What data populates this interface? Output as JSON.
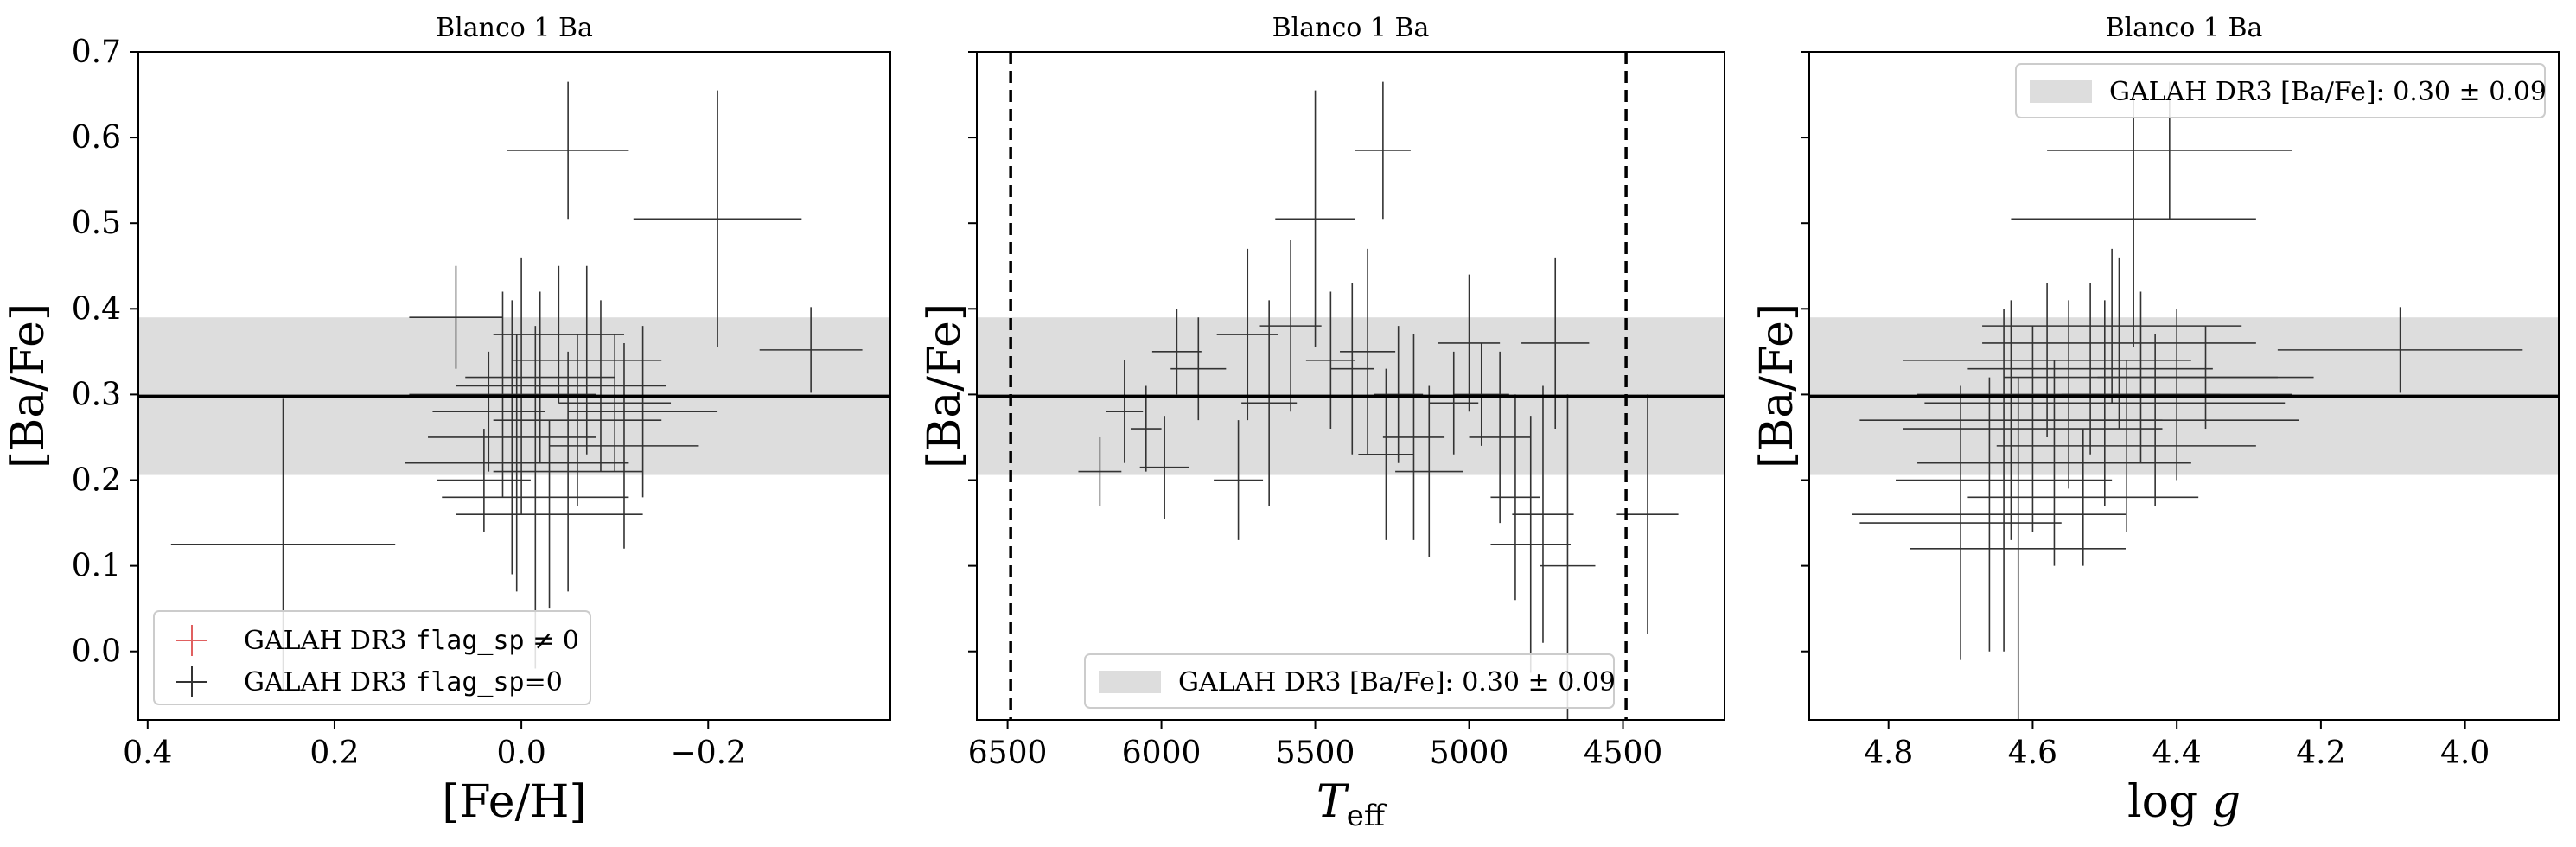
{
  "chart_data": [
    {
      "type": "scatter",
      "title": "Blanco 1 Ba",
      "xlabel": "[Fe/H]",
      "ylabel": "[Ba/Fe]",
      "xlim": [
        0.41,
        -0.395
      ],
      "ylim": [
        -0.08,
        0.7
      ],
      "x_inverted": true,
      "xticks": [
        0.4,
        0.2,
        0.0,
        -0.2
      ],
      "xtick_labels": [
        "0.4",
        "0.2",
        "0.0",
        "−0.2"
      ],
      "yticks": [
        0.0,
        0.1,
        0.2,
        0.3,
        0.4,
        0.5,
        0.6,
        0.7
      ],
      "ytick_labels": [
        "0.0",
        "0.1",
        "0.2",
        "0.3",
        "0.4",
        "0.5",
        "0.6",
        "0.7"
      ],
      "band": {
        "center": 0.298,
        "halfwidth": 0.092,
        "color": "#dddddd"
      },
      "hline": 0.298,
      "legend": {
        "position": "lower-left",
        "entries": [
          {
            "pre": "GALAH DR3 ",
            "code": "flag_sp",
            "post": " ≠ 0",
            "color": "#e06060"
          },
          {
            "pre": "GALAH DR3 ",
            "code": "flag_sp",
            "post": "=0",
            "color": "#333333"
          }
        ]
      },
      "series": [
        {
          "color": "#333333",
          "points": [
            [
              0.255,
              0.125,
              0.12,
              0.17
            ],
            [
              0.07,
              0.39,
              0.05,
              0.06
            ],
            [
              0.04,
              0.2,
              0.05,
              0.06
            ],
            [
              0.035,
              0.28,
              0.06,
              0.07
            ],
            [
              -0.05,
              0.585,
              0.065,
              0.08
            ],
            [
              -0.21,
              0.505,
              0.09,
              0.15
            ],
            [
              -0.31,
              0.352,
              0.055,
              0.05
            ],
            [
              0.02,
              0.3,
              0.1,
              0.12
            ],
            [
              0.0,
              0.31,
              0.07,
              0.15
            ],
            [
              -0.02,
              0.32,
              0.08,
              0.1
            ],
            [
              0.01,
              0.25,
              0.09,
              0.16
            ],
            [
              -0.03,
              0.16,
              0.1,
              0.11
            ],
            [
              -0.05,
              0.21,
              0.08,
              0.14
            ],
            [
              -0.07,
              0.34,
              0.08,
              0.11
            ],
            [
              -0.1,
              0.29,
              0.06,
              0.08
            ],
            [
              -0.13,
              0.28,
              0.08,
              0.1
            ],
            [
              0.005,
              0.22,
              0.12,
              0.15
            ],
            [
              -0.015,
              0.18,
              0.1,
              0.2
            ],
            [
              -0.04,
              0.37,
              0.07,
              0.08
            ],
            [
              -0.06,
              0.27,
              0.09,
              0.1
            ],
            [
              -0.085,
              0.31,
              0.07,
              0.1
            ],
            [
              -0.11,
              0.24,
              0.08,
              0.12
            ]
          ]
        }
      ]
    },
    {
      "type": "scatter",
      "title": "Blanco 1 Ba",
      "xlabel": "T_eff",
      "ylabel": "[Ba/Fe]",
      "xlim": [
        6600,
        4170
      ],
      "ylim": [
        -0.08,
        0.7
      ],
      "x_inverted": true,
      "xticks": [
        6500,
        6000,
        5500,
        5000,
        4500
      ],
      "xtick_labels": [
        "6500",
        "6000",
        "5500",
        "5000",
        "4500"
      ],
      "yticks": [
        0.0,
        0.1,
        0.2,
        0.3,
        0.4,
        0.5,
        0.6,
        0.7
      ],
      "ytick_labels": [
        "",
        "",
        "",
        "",
        "",
        "",
        "",
        ""
      ],
      "vlines": [
        6490,
        4490
      ],
      "band": {
        "center": 0.298,
        "halfwidth": 0.092,
        "color": "#dddddd"
      },
      "hline": 0.298,
      "legend": {
        "position": "lower-center",
        "entries": [
          {
            "text": "GALAH DR3 [Ba/Fe]: 0.30 ± 0.09",
            "patch": "#dddddd"
          }
        ]
      },
      "series": [
        {
          "color": "#333333",
          "points": [
            [
              6200,
              0.21,
              70,
              0.04
            ],
            [
              6120,
              0.28,
              60,
              0.06
            ],
            [
              6050,
              0.26,
              50,
              0.05
            ],
            [
              5990,
              0.215,
              80,
              0.06
            ],
            [
              5950,
              0.35,
              80,
              0.05
            ],
            [
              5880,
              0.33,
              90,
              0.06
            ],
            [
              5750,
              0.2,
              80,
              0.07
            ],
            [
              5720,
              0.37,
              100,
              0.1
            ],
            [
              5650,
              0.29,
              90,
              0.12
            ],
            [
              5580,
              0.38,
              100,
              0.1
            ],
            [
              5500,
              0.505,
              130,
              0.15
            ],
            [
              5450,
              0.34,
              80,
              0.08
            ],
            [
              5380,
              0.33,
              70,
              0.1
            ],
            [
              5330,
              0.35,
              90,
              0.12
            ],
            [
              5280,
              0.585,
              90,
              0.08
            ],
            [
              5270,
              0.23,
              90,
              0.1
            ],
            [
              5230,
              0.3,
              80,
              0.08
            ],
            [
              5180,
              0.25,
              100,
              0.12
            ],
            [
              5130,
              0.21,
              110,
              0.1
            ],
            [
              5050,
              0.29,
              80,
              0.06
            ],
            [
              5000,
              0.36,
              100,
              0.08
            ],
            [
              4960,
              0.3,
              90,
              0.06
            ],
            [
              4900,
              0.25,
              100,
              0.1
            ],
            [
              4850,
              0.18,
              80,
              0.12
            ],
            [
              4800,
              0.125,
              130,
              0.15
            ],
            [
              4760,
              0.16,
              100,
              0.15
            ],
            [
              4720,
              0.36,
              110,
              0.1
            ],
            [
              4680,
              0.1,
              90,
              0.2
            ],
            [
              4420,
              0.16,
              100,
              0.14
            ]
          ]
        }
      ]
    },
    {
      "type": "scatter",
      "title": "Blanco 1 Ba",
      "xlabel": "log g",
      "ylabel": "[Ba/Fe]",
      "xlim": [
        4.91,
        3.87
      ],
      "ylim": [
        -0.08,
        0.7
      ],
      "x_inverted": true,
      "xticks": [
        4.8,
        4.6,
        4.4,
        4.2,
        4.0
      ],
      "xtick_labels": [
        "4.8",
        "4.6",
        "4.4",
        "4.2",
        "4.0"
      ],
      "yticks": [
        0.0,
        0.1,
        0.2,
        0.3,
        0.4,
        0.5,
        0.6,
        0.7
      ],
      "ytick_labels": [
        "",
        "",
        "",
        "",
        "",
        "",
        "",
        ""
      ],
      "band": {
        "center": 0.298,
        "halfwidth": 0.092,
        "color": "#dddddd"
      },
      "hline": 0.298,
      "legend": {
        "position": "top-right",
        "entries": [
          {
            "text": "GALAH DR3 [Ba/Fe]: 0.30 ± 0.09",
            "patch": "#dddddd"
          }
        ]
      },
      "series": [
        {
          "color": "#333333",
          "points": [
            [
              4.41,
              0.585,
              0.17,
              0.08
            ],
            [
              4.46,
              0.505,
              0.17,
              0.15
            ],
            [
              4.09,
              0.352,
              0.17,
              0.05
            ],
            [
              4.66,
              0.16,
              0.19,
              0.16
            ],
            [
              4.62,
              0.12,
              0.15,
              0.2
            ],
            [
              4.64,
              0.2,
              0.15,
              0.2
            ],
            [
              4.6,
              0.26,
              0.18,
              0.12
            ],
            [
              4.55,
              0.3,
              0.21,
              0.11
            ],
            [
              4.52,
              0.33,
              0.17,
              0.1
            ],
            [
              4.5,
              0.29,
              0.25,
              0.12
            ],
            [
              4.48,
              0.36,
              0.19,
              0.1
            ],
            [
              4.45,
              0.32,
              0.19,
              0.1
            ],
            [
              4.43,
              0.27,
              0.2,
              0.1
            ],
            [
              4.4,
              0.3,
              0.16,
              0.1
            ],
            [
              4.57,
              0.22,
              0.19,
              0.12
            ],
            [
              4.53,
              0.18,
              0.16,
              0.08
            ],
            [
              4.47,
              0.24,
              0.18,
              0.1
            ],
            [
              4.58,
              0.34,
              0.2,
              0.09
            ],
            [
              4.49,
              0.38,
              0.18,
              0.09
            ],
            [
              4.36,
              0.32,
              0.15,
              0.06
            ],
            [
              4.7,
              0.15,
              0.14,
              0.16
            ],
            [
              4.63,
              0.27,
              0.21,
              0.14
            ]
          ]
        }
      ]
    }
  ]
}
